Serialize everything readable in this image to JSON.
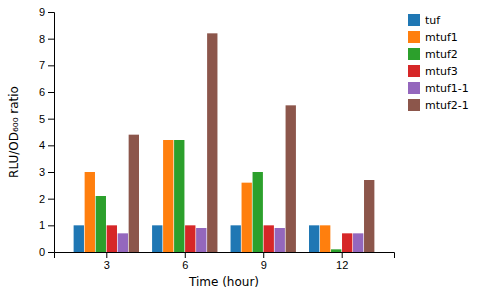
{
  "chart_data": {
    "type": "bar",
    "xlabel": "Time (hour)",
    "ylabel": "RLU/OD₆₀₀ ratio",
    "x": [
      3,
      6,
      9,
      12
    ],
    "xlim": [
      1.0,
      14.0
    ],
    "xticks": [
      3,
      6,
      9,
      12
    ],
    "ylim": [
      0,
      9
    ],
    "yticks": [
      0,
      1,
      2,
      3,
      4,
      5,
      6,
      7,
      8,
      9
    ],
    "grid": false,
    "legend": "right",
    "series": [
      {
        "name": "tuf",
        "values": [
          1.0,
          1.0,
          1.0,
          1.0
        ]
      },
      {
        "name": "mtuf1",
        "values": [
          3.0,
          4.2,
          2.6,
          1.0
        ]
      },
      {
        "name": "mtuf2",
        "values": [
          2.1,
          4.2,
          3.0,
          0.1
        ]
      },
      {
        "name": "mtuf3",
        "values": [
          1.0,
          1.0,
          1.0,
          0.7
        ]
      },
      {
        "name": "mtuf1-1",
        "values": [
          0.7,
          0.9,
          0.9,
          0.7
        ]
      },
      {
        "name": "mtuf2-1",
        "values": [
          4.4,
          8.2,
          5.5,
          2.7
        ]
      }
    ]
  }
}
